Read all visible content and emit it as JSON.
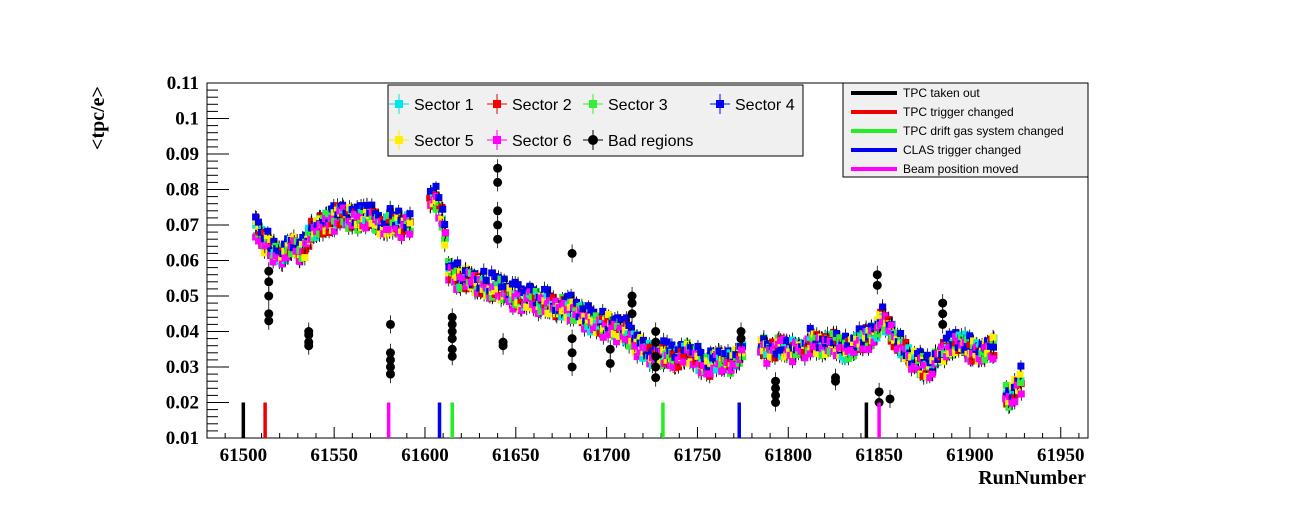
{
  "chart_data": {
    "type": "scatter",
    "xlabel": "RunNumber",
    "ylabel": "<tpc/e>",
    "xlim": [
      61480,
      61965
    ],
    "ylim": [
      0.01,
      0.11
    ],
    "xticks": [
      "61500",
      "61550",
      "61600",
      "61650",
      "61700",
      "61750",
      "61800",
      "61850",
      "61900",
      "61950"
    ],
    "xtick_values": [
      61500,
      61550,
      61600,
      61650,
      61700,
      61750,
      61800,
      61850,
      61900,
      61950
    ],
    "yticks": [
      "0.01",
      "0.02",
      "0.03",
      "0.04",
      "0.05",
      "0.06",
      "0.07",
      "0.08",
      "0.09",
      "0.1",
      "0.11"
    ],
    "ytick_values": [
      0.01,
      0.02,
      0.03,
      0.04,
      0.05,
      0.06,
      0.07,
      0.08,
      0.09,
      0.1,
      0.11
    ],
    "legend_position": "top-center",
    "series_legend": [
      {
        "name": "Sector 1",
        "color": "#00e5e5",
        "marker": "square"
      },
      {
        "name": "Sector 2",
        "color": "#ee0000",
        "marker": "square"
      },
      {
        "name": "Sector 3",
        "color": "#33ee33",
        "marker": "square"
      },
      {
        "name": "Sector 4",
        "color": "#0000ee",
        "marker": "square"
      },
      {
        "name": "Sector 5",
        "color": "#ffee00",
        "marker": "square"
      },
      {
        "name": "Sector 6",
        "color": "#ff00ff",
        "marker": "square"
      },
      {
        "name": "Bad regions",
        "color": "#000000",
        "marker": "circle"
      }
    ],
    "trend": [
      [
        61507,
        0.069
      ],
      [
        61510,
        0.066
      ],
      [
        61514,
        0.064
      ],
      [
        61518,
        0.063
      ],
      [
        61522,
        0.061
      ],
      [
        61528,
        0.064
      ],
      [
        61533,
        0.062
      ],
      [
        61537,
        0.068
      ],
      [
        61542,
        0.07
      ],
      [
        61548,
        0.071
      ],
      [
        61553,
        0.073
      ],
      [
        61558,
        0.072
      ],
      [
        61563,
        0.071
      ],
      [
        61568,
        0.073
      ],
      [
        61573,
        0.071
      ],
      [
        61578,
        0.07
      ],
      [
        61583,
        0.071
      ],
      [
        61588,
        0.069
      ],
      [
        61592,
        0.071
      ],
      [
        61605,
        0.078
      ],
      [
        61609,
        0.074
      ],
      [
        61613,
        0.058
      ],
      [
        61618,
        0.055
      ],
      [
        61624,
        0.055
      ],
      [
        61630,
        0.053
      ],
      [
        61636,
        0.052
      ],
      [
        61641,
        0.052
      ],
      [
        61645,
        0.051
      ],
      [
        61652,
        0.049
      ],
      [
        61658,
        0.049
      ],
      [
        61664,
        0.048
      ],
      [
        61670,
        0.047
      ],
      [
        61676,
        0.047
      ],
      [
        61682,
        0.046
      ],
      [
        61688,
        0.044
      ],
      [
        61694,
        0.042
      ],
      [
        61700,
        0.042
      ],
      [
        61705,
        0.041
      ],
      [
        61710,
        0.04
      ],
      [
        61715,
        0.037
      ],
      [
        61720,
        0.035
      ],
      [
        61726,
        0.033
      ],
      [
        61732,
        0.033
      ],
      [
        61738,
        0.032
      ],
      [
        61744,
        0.034
      ],
      [
        61750,
        0.032
      ],
      [
        61756,
        0.03
      ],
      [
        61762,
        0.032
      ],
      [
        61768,
        0.031
      ],
      [
        61774,
        0.034
      ],
      [
        61785,
        0.036
      ],
      [
        61790,
        0.034
      ],
      [
        61796,
        0.036
      ],
      [
        61802,
        0.035
      ],
      [
        61808,
        0.036
      ],
      [
        61814,
        0.037
      ],
      [
        61820,
        0.036
      ],
      [
        61825,
        0.037
      ],
      [
        61832,
        0.034
      ],
      [
        61837,
        0.036
      ],
      [
        61842,
        0.038
      ],
      [
        61847,
        0.039
      ],
      [
        61852,
        0.044
      ],
      [
        61856,
        0.041
      ],
      [
        61860,
        0.037
      ],
      [
        61864,
        0.035
      ],
      [
        61868,
        0.032
      ],
      [
        61872,
        0.031
      ],
      [
        61878,
        0.029
      ],
      [
        61884,
        0.034
      ],
      [
        61888,
        0.035
      ],
      [
        61894,
        0.037
      ],
      [
        61898,
        0.036
      ],
      [
        61903,
        0.034
      ],
      [
        61908,
        0.035
      ],
      [
        61913,
        0.036
      ],
      [
        61921,
        0.02
      ],
      [
        61924,
        0.023
      ],
      [
        61927,
        0.026
      ]
    ],
    "bad_regions": [
      [
        61514,
        0.043
      ],
      [
        61514,
        0.045
      ],
      [
        61514,
        0.05
      ],
      [
        61514,
        0.054
      ],
      [
        61514,
        0.057
      ],
      [
        61536,
        0.036
      ],
      [
        61536,
        0.037
      ],
      [
        61536,
        0.039
      ],
      [
        61536,
        0.04
      ],
      [
        61581,
        0.028
      ],
      [
        61581,
        0.03
      ],
      [
        61581,
        0.032
      ],
      [
        61581,
        0.034
      ],
      [
        61581,
        0.042
      ],
      [
        61615,
        0.033
      ],
      [
        61615,
        0.035
      ],
      [
        61615,
        0.038
      ],
      [
        61615,
        0.04
      ],
      [
        61615,
        0.042
      ],
      [
        61615,
        0.044
      ],
      [
        61640,
        0.066
      ],
      [
        61640,
        0.07
      ],
      [
        61640,
        0.074
      ],
      [
        61640,
        0.082
      ],
      [
        61640,
        0.086
      ],
      [
        61643,
        0.036
      ],
      [
        61643,
        0.037
      ],
      [
        61681,
        0.062
      ],
      [
        61681,
        0.038
      ],
      [
        61681,
        0.034
      ],
      [
        61681,
        0.03
      ],
      [
        61702,
        0.031
      ],
      [
        61702,
        0.035
      ],
      [
        61714,
        0.045
      ],
      [
        61714,
        0.048
      ],
      [
        61714,
        0.05
      ],
      [
        61727,
        0.027
      ],
      [
        61727,
        0.03
      ],
      [
        61727,
        0.033
      ],
      [
        61727,
        0.04
      ],
      [
        61727,
        0.037
      ],
      [
        61774,
        0.038
      ],
      [
        61774,
        0.04
      ],
      [
        61793,
        0.02
      ],
      [
        61793,
        0.022
      ],
      [
        61793,
        0.024
      ],
      [
        61793,
        0.026
      ],
      [
        61826,
        0.026
      ],
      [
        61826,
        0.027
      ],
      [
        61849,
        0.053
      ],
      [
        61849,
        0.056
      ],
      [
        61850,
        0.02
      ],
      [
        61850,
        0.023
      ],
      [
        61856,
        0.021
      ],
      [
        61885,
        0.042
      ],
      [
        61885,
        0.045
      ],
      [
        61885,
        0.048
      ]
    ],
    "events_legend": [
      {
        "name": "TPC taken out",
        "color": "#000000"
      },
      {
        "name": "TPC trigger changed",
        "color": "#ee0000"
      },
      {
        "name": "TPC drift gas system changed",
        "color": "#22ee22"
      },
      {
        "name": "CLAS trigger changed",
        "color": "#0000ee"
      },
      {
        "name": "Beam position moved",
        "color": "#ff00ff"
      }
    ],
    "event_markers": [
      {
        "x": 61500,
        "type": "TPC taken out"
      },
      {
        "x": 61512,
        "type": "TPC trigger changed"
      },
      {
        "x": 61580,
        "type": "Beam position moved"
      },
      {
        "x": 61608,
        "type": "CLAS trigger changed"
      },
      {
        "x": 61615,
        "type": "TPC drift gas system changed"
      },
      {
        "x": 61731,
        "type": "TPC drift gas system changed"
      },
      {
        "x": 61773,
        "type": "CLAS trigger changed"
      },
      {
        "x": 61843,
        "type": "TPC taken out"
      },
      {
        "x": 61850,
        "type": "Beam position moved"
      }
    ]
  }
}
